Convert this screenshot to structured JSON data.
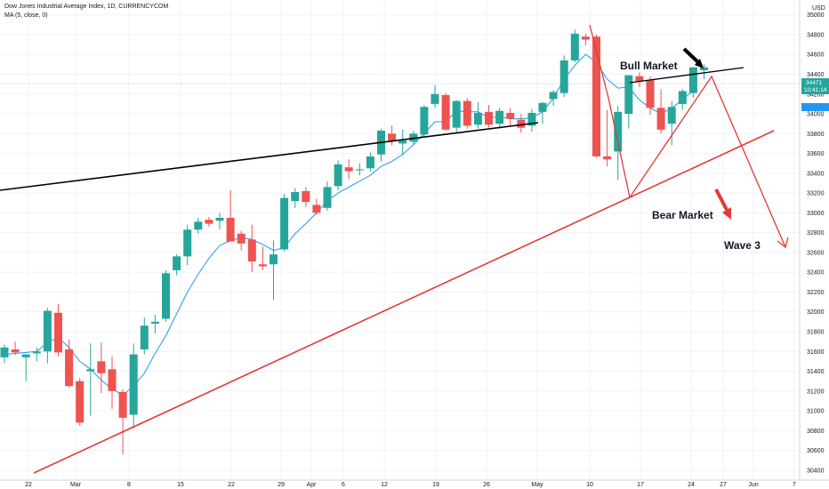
{
  "legend": {
    "title": "Dow Jones Industrial Average Index, 1D, CURRENCYCOM",
    "indicator": "MA (5, close, 0)"
  },
  "currency_label": "USD",
  "price_tags": {
    "last": "34471",
    "countdown": "10:41:14"
  },
  "annotations": {
    "bull": "Bull Market",
    "bear": "Bear Market",
    "wave": "Wave 3"
  },
  "colors": {
    "up": "#26a69a",
    "down": "#ef5350",
    "ma": "#2196f3",
    "trend_black": "#000000",
    "trend_red": "#e53935"
  },
  "chart_data": {
    "type": "candlestick",
    "title": "Dow Jones Industrial Average Index, 1D, CURRENCYCOM",
    "ylim": [
      30300,
      35150
    ],
    "y_ticks": [
      30400,
      30600,
      30800,
      31000,
      31200,
      31400,
      31600,
      31800,
      32000,
      32200,
      32400,
      32600,
      32800,
      33000,
      33200,
      33400,
      33600,
      33800,
      34000,
      34200,
      34400,
      34600,
      34800,
      35000
    ],
    "x_ticks": [
      "22",
      "Mar",
      "8",
      "15",
      "22",
      "29",
      "Apr",
      "6",
      "12",
      "19",
      "26",
      "May",
      "10",
      "17",
      "24",
      "27",
      "Jun",
      "7"
    ],
    "series": [
      {
        "name": "Dow Jones Industrial Average Index",
        "ohlc": [
          [
            31540,
            31670,
            31480,
            31640
          ],
          [
            31620,
            31700,
            31560,
            31590
          ],
          [
            31540,
            31560,
            31300,
            31570
          ],
          [
            31580,
            31640,
            31500,
            31600
          ],
          [
            31600,
            32040,
            31480,
            32010
          ],
          [
            31990,
            32080,
            31550,
            31590
          ],
          [
            31620,
            31720,
            31240,
            31250
          ],
          [
            31300,
            31330,
            30850,
            30880
          ],
          [
            31400,
            31680,
            30950,
            31420
          ],
          [
            31500,
            31690,
            31180,
            31380
          ],
          [
            31420,
            31550,
            31020,
            31200
          ],
          [
            31190,
            31220,
            30560,
            30930
          ],
          [
            30960,
            31680,
            30820,
            31570
          ],
          [
            31620,
            31940,
            31570,
            31860
          ],
          [
            31880,
            31970,
            31780,
            31900
          ],
          [
            31930,
            32420,
            31900,
            32390
          ],
          [
            32420,
            32580,
            32370,
            32560
          ],
          [
            32560,
            32880,
            32470,
            32830
          ],
          [
            32830,
            32950,
            32790,
            32910
          ],
          [
            32930,
            32960,
            32860,
            32890
          ],
          [
            32920,
            33000,
            32830,
            32950
          ],
          [
            32950,
            33230,
            32730,
            32710
          ],
          [
            32790,
            32820,
            32620,
            32690
          ],
          [
            32730,
            32880,
            32400,
            32510
          ],
          [
            32480,
            32660,
            32420,
            32460
          ],
          [
            32480,
            32720,
            32120,
            32580
          ],
          [
            32630,
            33190,
            32610,
            33150
          ],
          [
            33120,
            33250,
            33050,
            33210
          ],
          [
            33220,
            33260,
            33060,
            33110
          ],
          [
            33080,
            33140,
            32980,
            33000
          ],
          [
            33050,
            33320,
            33020,
            33260
          ],
          [
            33270,
            33530,
            33230,
            33490
          ],
          [
            33460,
            33540,
            33340,
            33420
          ],
          [
            33430,
            33500,
            33380,
            33440
          ],
          [
            33450,
            33610,
            33420,
            33570
          ],
          [
            33590,
            33850,
            33520,
            33830
          ],
          [
            33800,
            33880,
            33680,
            33730
          ],
          [
            33700,
            33840,
            33580,
            33730
          ],
          [
            33720,
            33830,
            33690,
            33800
          ],
          [
            33790,
            34090,
            33770,
            34070
          ],
          [
            34100,
            34290,
            34060,
            34200
          ],
          [
            34190,
            34210,
            33830,
            33840
          ],
          [
            33860,
            34140,
            33800,
            34130
          ],
          [
            34130,
            34160,
            33850,
            33880
          ],
          [
            33890,
            34120,
            33850,
            34010
          ],
          [
            34020,
            34090,
            33860,
            33890
          ],
          [
            33900,
            34060,
            33850,
            34030
          ],
          [
            34010,
            34060,
            33870,
            33950
          ],
          [
            33940,
            34000,
            33810,
            33860
          ],
          [
            33880,
            34050,
            33820,
            34010
          ],
          [
            34020,
            34120,
            33900,
            34110
          ],
          [
            34150,
            34240,
            34080,
            34220
          ],
          [
            34210,
            34590,
            34170,
            34540
          ],
          [
            34540,
            34850,
            34520,
            34810
          ],
          [
            34780,
            34810,
            34690,
            34750
          ],
          [
            34780,
            34800,
            33560,
            33570
          ],
          [
            33570,
            34040,
            33470,
            33540
          ],
          [
            33620,
            34080,
            33330,
            34020
          ],
          [
            34000,
            34380,
            33850,
            34390
          ],
          [
            34380,
            34420,
            34270,
            34330
          ],
          [
            34340,
            34380,
            33990,
            34060
          ],
          [
            34060,
            34250,
            33800,
            33840
          ],
          [
            33900,
            34130,
            33680,
            34070
          ],
          [
            34100,
            34250,
            34040,
            34230
          ],
          [
            34210,
            34470,
            34160,
            34470
          ],
          [
            34440,
            34500,
            34350,
            34470
          ]
        ]
      },
      {
        "name": "MA (5, close, 0)",
        "values": [
          31570,
          31580,
          31590,
          31600,
          31690,
          31740,
          31640,
          31500,
          31420,
          31310,
          31220,
          31160,
          31250,
          31380,
          31580,
          31760,
          31980,
          32200,
          32380,
          32540,
          32670,
          32720,
          32750,
          32730,
          32680,
          32620,
          32650,
          32790,
          32890,
          33000,
          33120,
          33200,
          33260,
          33320,
          33380,
          33470,
          33520,
          33590,
          33690,
          33800,
          33920,
          33920,
          34030,
          34020,
          34020,
          33960,
          33970,
          33950,
          33950,
          33960,
          34020,
          34160,
          34350,
          34490,
          34600,
          34520,
          34350,
          34260,
          34270,
          34140,
          34060,
          34000,
          34060,
          34140,
          34240
        ]
      }
    ]
  }
}
